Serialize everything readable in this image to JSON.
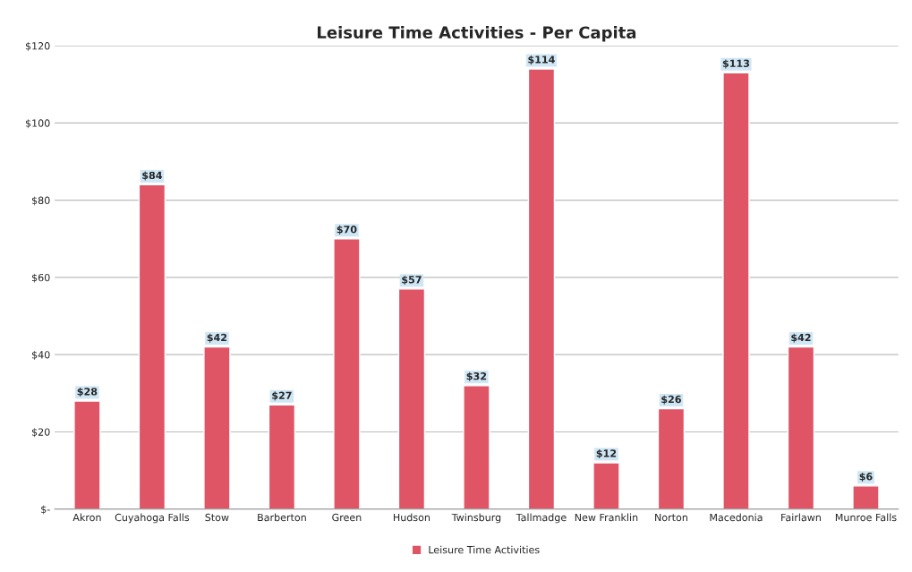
{
  "chart_data": {
    "type": "bar",
    "title": "Leisure Time Activities - Per Capita",
    "categories": [
      "Akron",
      "Cuyahoga Falls",
      "Stow",
      "Barberton",
      "Green",
      "Hudson",
      "Twinsburg",
      "Tallmadge",
      "New Franklin",
      "Norton",
      "Macedonia",
      "Fairlawn",
      "Munroe Falls"
    ],
    "series": [
      {
        "name": "Leisure Time Activities",
        "color": "#e05566",
        "values": [
          28,
          84,
          42,
          27,
          70,
          57,
          32,
          114,
          12,
          26,
          113,
          42,
          6
        ],
        "value_labels": [
          "$28",
          "$84",
          "$42",
          "$27",
          "$70",
          "$57",
          "$32",
          "$114",
          "$12",
          "$26",
          "$113",
          "$42",
          "$6"
        ]
      }
    ],
    "ylim": [
      0,
      120
    ],
    "yticks": [
      {
        "value": 0,
        "label": "$-"
      },
      {
        "value": 20,
        "label": "$20"
      },
      {
        "value": 40,
        "label": "$40"
      },
      {
        "value": 60,
        "label": "$60"
      },
      {
        "value": 80,
        "label": "$80"
      },
      {
        "value": 100,
        "label": "$100"
      },
      {
        "value": 120,
        "label": "$120"
      }
    ],
    "grid": "y",
    "legend": "bottom"
  }
}
